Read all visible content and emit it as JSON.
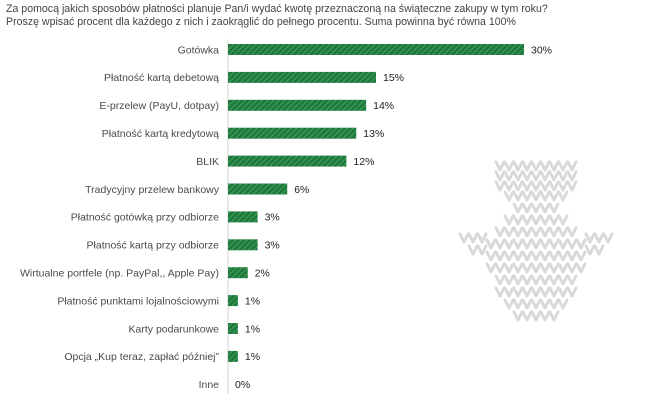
{
  "title_lines": [
    "Za pomocą jakich sposobów płatności planuje Pan/i wydać kwotę przeznaczoną na świąteczne zakupy w tym roku?",
    "Proszę wpisać procent dla każdego z nich i zaokrąglić do pełnego procentu. Suma powinna być równa 100%"
  ],
  "chart_data": {
    "type": "bar",
    "orientation": "horizontal",
    "categories": [
      "Gotówka",
      "Płatność kartą debetową",
      "E-przelew (PayU, dotpay)",
      "Płatność kartą kredytową",
      "BLIK",
      "Tradycyjny przelew bankowy",
      "Płatność gotówką przy odbiorze",
      "Płatność kartą przy odbiorze",
      "Wirtualne portfele (np. PayPal,, Apple Pay)",
      "Płatność punktami lojalnościowymi",
      "Karty podarunkowe",
      "Opcja „Kup teraz, zapłać później”",
      "Inne"
    ],
    "values": [
      30,
      15,
      14,
      13,
      12,
      6,
      3,
      3,
      2,
      1,
      1,
      1,
      0
    ],
    "value_labels": [
      "30%",
      "15%",
      "14%",
      "13%",
      "12%",
      "6%",
      "3%",
      "3%",
      "2%",
      "1%",
      "1%",
      "1%",
      "0%"
    ],
    "xlim": [
      0,
      30
    ],
    "bar_color": "#1e7a3c",
    "bar_pattern": "diagonal-hatch",
    "grid": false
  },
  "colors": {
    "bar": "#1e7a3c",
    "bar_stripe": "#4ea868",
    "decoration": "#d9d9d9",
    "axis": "#b5b5b5"
  },
  "decoration": "knitted-snowman-icon"
}
